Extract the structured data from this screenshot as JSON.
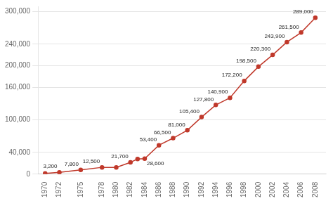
{
  "chart_data": {
    "type": "line",
    "x": [
      1970,
      1972,
      1975,
      1978,
      1980,
      1982,
      1983,
      1984,
      1986,
      1988,
      1990,
      1992,
      1994,
      1996,
      1998,
      2000,
      2002,
      2004,
      2006,
      2008
    ],
    "values": [
      1200,
      3200,
      7800,
      12500,
      12500,
      21700,
      28000,
      28600,
      53400,
      66500,
      81000,
      105400,
      127800,
      140900,
      172200,
      198500,
      220300,
      243900,
      261500,
      289000
    ],
    "data_labels": true,
    "value_labels": [
      null,
      "3,200",
      "7,800",
      "12,500",
      null,
      "21,700",
      null,
      "28,600",
      "53,400",
      "66,500",
      "81,000",
      "105,400",
      "127,800",
      "140,900",
      "172,200",
      "198,500",
      "220,300",
      "243,900",
      "261,500",
      "289,000"
    ],
    "color": "#c0392b",
    "marker": "circle",
    "xlim": [
      1969,
      2009.5
    ],
    "xticks": [
      1970,
      1972,
      1975,
      1978,
      1980,
      1982,
      1984,
      1986,
      1988,
      1990,
      1992,
      1994,
      1996,
      1998,
      2000,
      2002,
      2004,
      2006,
      2008
    ],
    "ylim": [
      0,
      310000
    ],
    "yticks": [
      0,
      {
        "value": 40000,
        "label": "40,000"
      },
      {
        "value": 100000,
        "label": "100,000"
      },
      {
        "value": 160000,
        "label": "160,000"
      },
      {
        "value": 200000,
        "label": "200,000"
      },
      {
        "value": 240000,
        "label": "240,000"
      },
      {
        "value": 300000,
        "label": "300,000"
      }
    ],
    "grid": "y"
  }
}
